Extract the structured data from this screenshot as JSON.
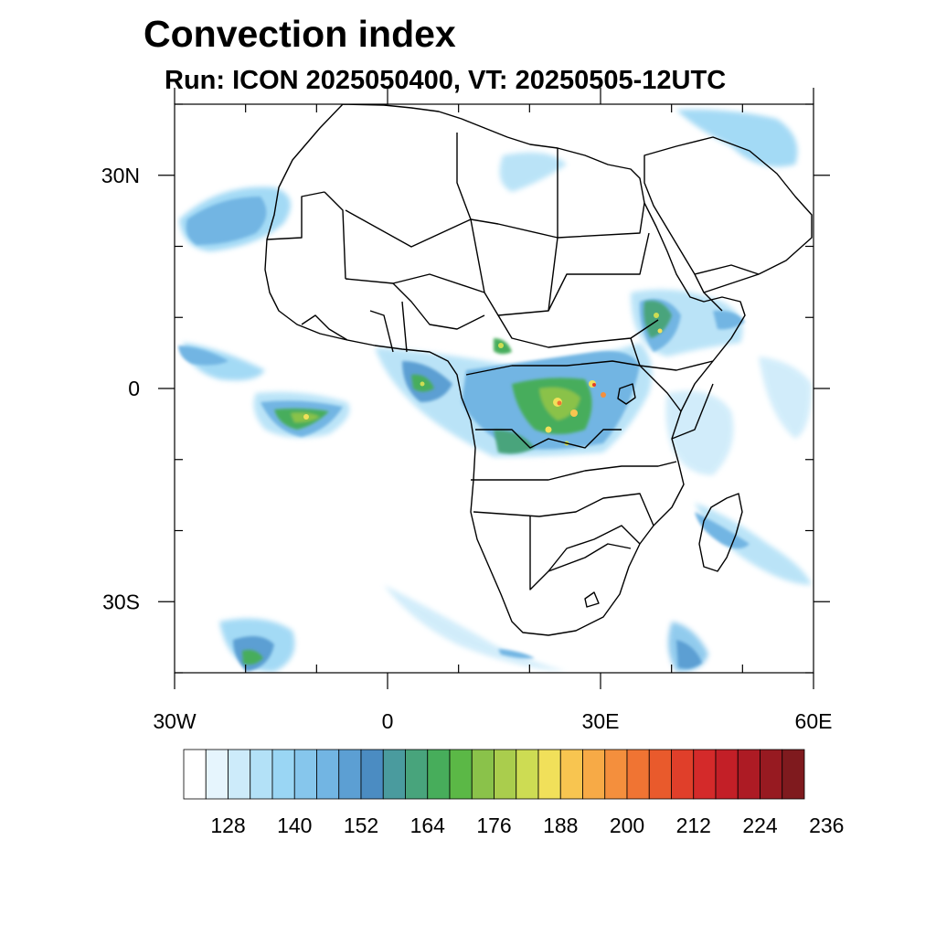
{
  "title": "Convection index",
  "subtitle": "Run: ICON 2025050400,  VT: 20250505-12UTC",
  "map": {
    "region": "Africa",
    "lon_range": [
      -30,
      60
    ],
    "lat_range": [
      -40,
      40
    ],
    "lat_ticks": [
      {
        "value": 30,
        "label": "30N"
      },
      {
        "value": 0,
        "label": "0"
      },
      {
        "value": -30,
        "label": "30S"
      }
    ],
    "lon_ticks": [
      {
        "value": -30,
        "label": "30W"
      },
      {
        "value": 0,
        "label": "0"
      },
      {
        "value": 30,
        "label": "30E"
      },
      {
        "value": 60,
        "label": "60E"
      }
    ]
  },
  "colorbar": {
    "colors": [
      "#ffffff",
      "#e6f5fd",
      "#cdebfa",
      "#b3e1f7",
      "#9ad6f4",
      "#86c6ec",
      "#72b5e3",
      "#5c9fd3",
      "#4b8cc2",
      "#4a9b9e",
      "#48a47c",
      "#47ad5b",
      "#5bb846",
      "#8ac24a",
      "#aacd4d",
      "#cddc53",
      "#f1e05a",
      "#f8c550",
      "#f7aa46",
      "#f48f3d",
      "#f07433",
      "#e95a2c",
      "#e03f2a",
      "#d42a2a",
      "#c31f27",
      "#ad1b24",
      "#971a21",
      "#7f1a1e"
    ],
    "labels": [
      "128",
      "140",
      "152",
      "164",
      "176",
      "188",
      "200",
      "212",
      "224",
      "236"
    ]
  }
}
